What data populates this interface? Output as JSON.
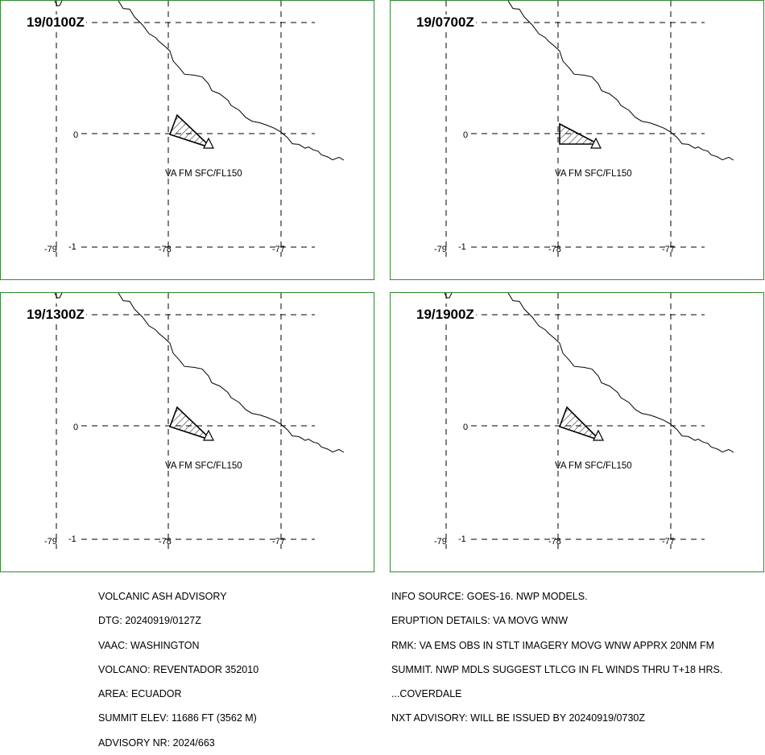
{
  "panels": [
    {
      "time": "19/0100Z",
      "label": "VA FM SFC/FL150"
    },
    {
      "time": "19/0700Z",
      "label": "VA FM SFC/FL150"
    },
    {
      "time": "19/1300Z",
      "label": "VA FM SFC/FL150"
    },
    {
      "time": "19/1900Z",
      "label": "VA FM SFC/FL150"
    }
  ],
  "grid": {
    "lon_labels": [
      "-79",
      "-78",
      "-77"
    ],
    "lat_labels": [
      "0",
      "-1"
    ]
  },
  "advisory_left": [
    "VOLCANIC ASH ADVISORY",
    "DTG: 20240919/0127Z",
    "VAAC: WASHINGTON",
    "VOLCANO: REVENTADOR 352010",
    "AREA: ECUADOR",
    "SUMMIT ELEV: 11686 FT (3562 M)",
    "ADVISORY NR: 2024/663"
  ],
  "advisory_right": [
    "INFO SOURCE: GOES-16. NWP MODELS.",
    "ERUPTION DETAILS: VA MOVG WNW",
    "RMK: VA EMS OBS IN STLT IMAGERY MOVG WNW APPRX 20NM FM",
    "SUMMIT. NWP MDLS SUGGEST LTLCG IN FL WINDS THRU T+18 HRS.",
    "...COVERDALE",
    "NXT ADVISORY: WILL BE ISSUED BY 20240919/0730Z"
  ],
  "colors": {
    "frame": "#2e8b2e",
    "lines": "#000000"
  }
}
